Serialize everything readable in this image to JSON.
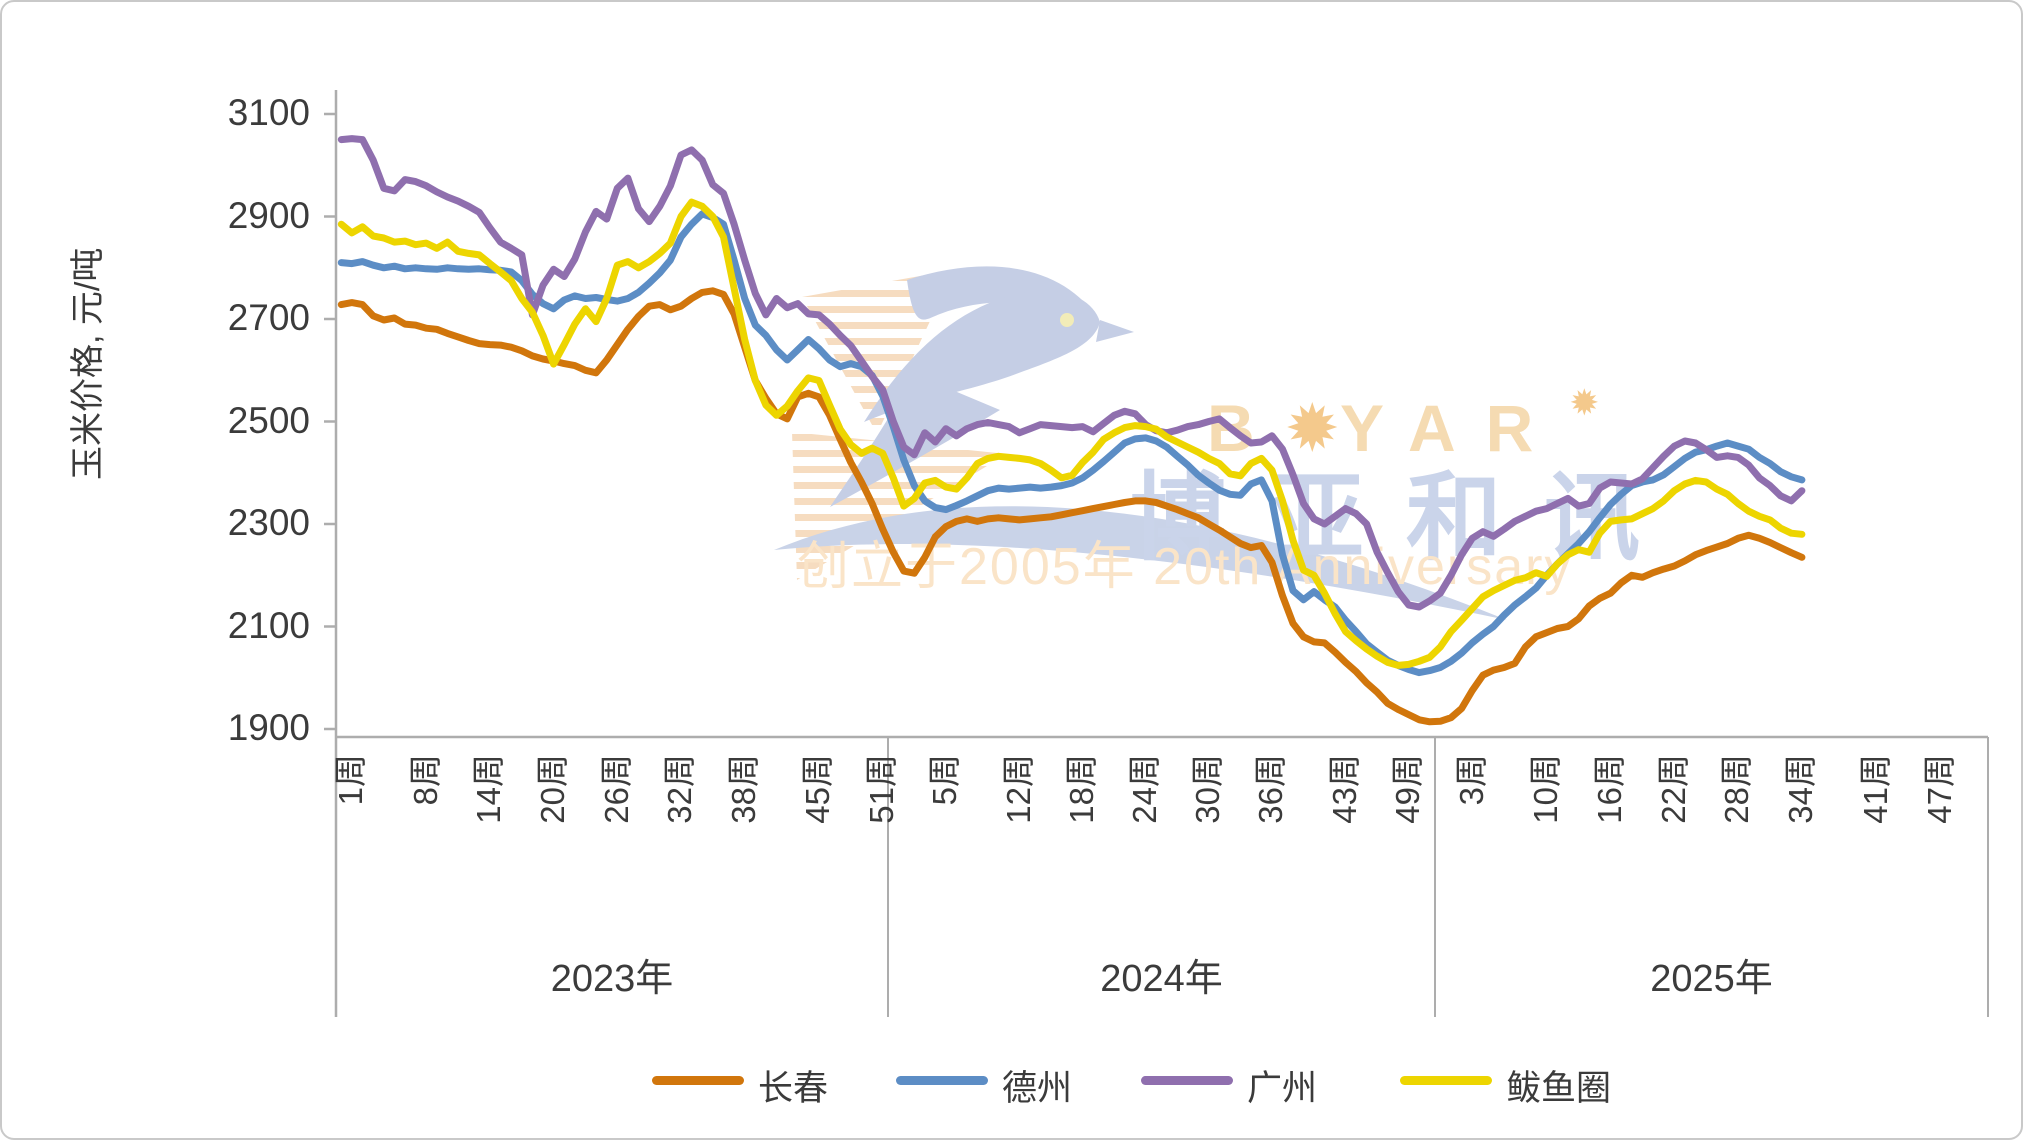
{
  "y_axis": {
    "label": "玉米价格, 元/吨",
    "ticks": [
      "3100",
      "2900",
      "2700",
      "2500",
      "2300",
      "2100",
      "1900"
    ]
  },
  "x_axis": {
    "week_suffix": "周",
    "years": [
      {
        "label": "2023年",
        "tick_weeks": [
          1,
          8,
          14,
          20,
          26,
          32,
          38,
          45,
          51
        ]
      },
      {
        "label": "2024年",
        "tick_weeks": [
          5,
          12,
          18,
          24,
          30,
          36,
          43,
          49
        ]
      },
      {
        "label": "2025年",
        "tick_weeks": [
          3,
          10,
          16,
          22,
          28,
          34,
          41,
          47
        ]
      }
    ]
  },
  "watermark": {
    "brand_b": "B",
    "brand_rest": "YAR",
    "brand_cn": "博亚和讯",
    "tagline": "创立于2005年 20th Anniversary"
  },
  "chart_data": {
    "type": "line",
    "title": "",
    "ylabel": "玉米价格, 元/吨",
    "ylim": [
      1884,
      3147
    ],
    "y_ticks": [
      3100,
      2900,
      2700,
      2500,
      2300,
      2100,
      1900
    ],
    "x_mode": "weekly",
    "years": [
      "2023",
      "2024",
      "2025"
    ],
    "weeks_per_year": 52,
    "legend_position": "bottom",
    "grid": false,
    "series": [
      {
        "name": "长春",
        "color": "#d1760c",
        "values": {
          "2023": [
            2728,
            2732,
            2728,
            2706,
            2698,
            2702,
            2690,
            2688,
            2682,
            2680,
            2672,
            2665,
            2658,
            2652,
            2650,
            2649,
            2645,
            2638,
            2628,
            2622,
            2618,
            2613,
            2609,
            2600,
            2595,
            2620,
            2650,
            2680,
            2705,
            2725,
            2728,
            2718,
            2725,
            2740,
            2752,
            2755,
            2748,
            2710,
            2645,
            2580,
            2545,
            2515,
            2505,
            2548,
            2555,
            2548,
            2512,
            2465,
            2420,
            2382,
            2340,
            2290
          ],
          "2024": [
            2245,
            2208,
            2204,
            2235,
            2275,
            2295,
            2305,
            2310,
            2305,
            2310,
            2312,
            2310,
            2308,
            2310,
            2312,
            2314,
            2318,
            2322,
            2326,
            2330,
            2334,
            2338,
            2342,
            2345,
            2345,
            2342,
            2335,
            2328,
            2320,
            2312,
            2300,
            2288,
            2275,
            2262,
            2254,
            2258,
            2225,
            2160,
            2106,
            2080,
            2070,
            2068,
            2050,
            2030,
            2012,
            1990,
            1972,
            1950,
            1938,
            1928,
            1918,
            1914
          ],
          "2025": [
            1915,
            1922,
            1940,
            1975,
            2005,
            2015,
            2020,
            2028,
            2060,
            2080,
            2088,
            2096,
            2100,
            2115,
            2140,
            2155,
            2165,
            2185,
            2200,
            2196,
            2205,
            2212,
            2218,
            2228,
            2240,
            2248,
            2255,
            2262,
            2272,
            2278,
            2272,
            2264,
            2254,
            2244,
            2235
          ]
        }
      },
      {
        "name": "德州",
        "color": "#5c8dc5",
        "values": {
          "2023": [
            2810,
            2808,
            2812,
            2805,
            2800,
            2803,
            2798,
            2800,
            2798,
            2797,
            2800,
            2798,
            2797,
            2798,
            2796,
            2795,
            2792,
            2775,
            2748,
            2730,
            2720,
            2737,
            2745,
            2740,
            2742,
            2738,
            2735,
            2740,
            2752,
            2770,
            2790,
            2815,
            2860,
            2885,
            2905,
            2898,
            2885,
            2815,
            2740,
            2688,
            2668,
            2640,
            2620,
            2640,
            2660,
            2642,
            2620,
            2607,
            2613,
            2607,
            2590,
            2550
          ],
          "2024": [
            2490,
            2425,
            2375,
            2345,
            2332,
            2328,
            2336,
            2345,
            2355,
            2365,
            2370,
            2368,
            2370,
            2372,
            2370,
            2372,
            2375,
            2380,
            2390,
            2405,
            2422,
            2440,
            2458,
            2466,
            2468,
            2462,
            2450,
            2432,
            2415,
            2395,
            2380,
            2366,
            2358,
            2356,
            2378,
            2386,
            2345,
            2240,
            2170,
            2152,
            2168,
            2152,
            2138,
            2112,
            2090,
            2066,
            2050,
            2034,
            2024,
            2016,
            2010,
            2014
          ],
          "2025": [
            2020,
            2032,
            2048,
            2068,
            2085,
            2100,
            2122,
            2142,
            2158,
            2175,
            2200,
            2222,
            2242,
            2262,
            2285,
            2312,
            2338,
            2358,
            2375,
            2382,
            2386,
            2396,
            2412,
            2428,
            2440,
            2445,
            2452,
            2458,
            2452,
            2446,
            2430,
            2418,
            2402,
            2392,
            2386
          ]
        }
      },
      {
        "name": "广州",
        "color": "#8f6fae",
        "values": {
          "2023": [
            3050,
            3052,
            3050,
            3010,
            2955,
            2950,
            2972,
            2968,
            2960,
            2948,
            2938,
            2930,
            2920,
            2908,
            2878,
            2850,
            2838,
            2825,
            2708,
            2766,
            2797,
            2783,
            2817,
            2870,
            2910,
            2895,
            2955,
            2975,
            2915,
            2890,
            2920,
            2960,
            3020,
            3030,
            3010,
            2962,
            2945,
            2885,
            2815,
            2750,
            2708,
            2740,
            2722,
            2730,
            2710,
            2708,
            2690,
            2668,
            2648,
            2618,
            2588,
            2562
          ],
          "2024": [
            2500,
            2450,
            2435,
            2478,
            2460,
            2486,
            2472,
            2486,
            2494,
            2498,
            2494,
            2490,
            2478,
            2486,
            2494,
            2492,
            2490,
            2488,
            2490,
            2480,
            2496,
            2512,
            2520,
            2515,
            2494,
            2482,
            2478,
            2483,
            2490,
            2494,
            2500,
            2505,
            2488,
            2472,
            2458,
            2460,
            2472,
            2446,
            2396,
            2340,
            2310,
            2300,
            2315,
            2330,
            2320,
            2300,
            2245,
            2205,
            2168,
            2142,
            2138,
            2150
          ],
          "2025": [
            2165,
            2200,
            2240,
            2272,
            2285,
            2276,
            2290,
            2305,
            2315,
            2325,
            2330,
            2340,
            2350,
            2335,
            2340,
            2370,
            2382,
            2380,
            2378,
            2388,
            2410,
            2432,
            2452,
            2462,
            2458,
            2445,
            2430,
            2433,
            2430,
            2415,
            2390,
            2375,
            2355,
            2345,
            2365
          ]
        }
      },
      {
        "name": "鲅鱼圈",
        "color": "#edd500",
        "values": {
          "2023": [
            2885,
            2868,
            2880,
            2862,
            2858,
            2850,
            2852,
            2845,
            2848,
            2838,
            2850,
            2832,
            2828,
            2825,
            2808,
            2792,
            2775,
            2740,
            2713,
            2668,
            2612,
            2650,
            2690,
            2720,
            2695,
            2740,
            2805,
            2812,
            2800,
            2812,
            2828,
            2848,
            2900,
            2928,
            2920,
            2900,
            2860,
            2760,
            2660,
            2580,
            2532,
            2512,
            2530,
            2560,
            2585,
            2580,
            2532,
            2485,
            2455,
            2438,
            2448,
            2438
          ],
          "2024": [
            2390,
            2335,
            2350,
            2380,
            2385,
            2372,
            2368,
            2390,
            2418,
            2428,
            2432,
            2430,
            2428,
            2425,
            2418,
            2405,
            2390,
            2395,
            2420,
            2440,
            2465,
            2478,
            2488,
            2492,
            2490,
            2485,
            2470,
            2460,
            2450,
            2440,
            2428,
            2418,
            2398,
            2394,
            2418,
            2428,
            2405,
            2345,
            2268,
            2210,
            2200,
            2165,
            2125,
            2090,
            2072,
            2056,
            2042,
            2030,
            2024,
            2026,
            2032,
            2040
          ],
          "2025": [
            2060,
            2090,
            2112,
            2135,
            2158,
            2170,
            2180,
            2190,
            2195,
            2205,
            2198,
            2222,
            2240,
            2250,
            2245,
            2282,
            2305,
            2308,
            2310,
            2320,
            2330,
            2345,
            2365,
            2378,
            2385,
            2382,
            2368,
            2358,
            2340,
            2325,
            2315,
            2308,
            2292,
            2282,
            2280
          ]
        }
      }
    ]
  }
}
